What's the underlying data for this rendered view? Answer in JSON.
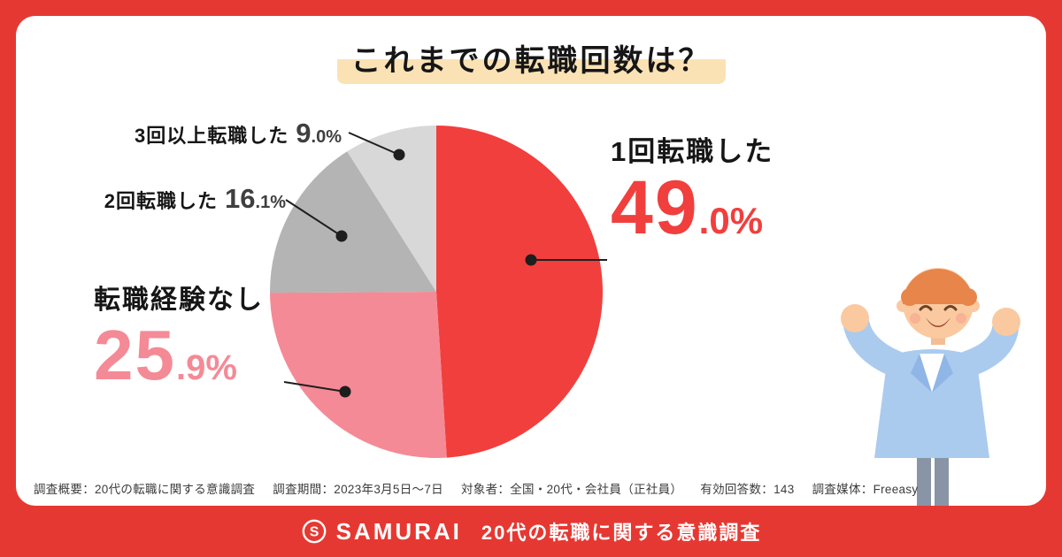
{
  "theme": {
    "bg_red": "#e63832",
    "card_white": "#ffffff",
    "title_highlight": "#fbe2b5",
    "accent_red": "#f13f3d",
    "accent_pink": "#f48a96",
    "gray": "#b4b4b4",
    "light_gray": "#d8d8d8"
  },
  "title": "これまでの転職回数は？",
  "chart_data": {
    "type": "pie",
    "title": "これまでの転職回数は？",
    "unit": "%",
    "start_angle": "top",
    "direction": "clockwise",
    "legend_position": "callout-labels",
    "slices": [
      {
        "label": "1回転職した",
        "value": 49.0,
        "display": "49.0%",
        "color": "#f13f3d"
      },
      {
        "label": "転職経験なし",
        "value": 25.9,
        "display": "25.9%",
        "color": "#f48a96"
      },
      {
        "label": "2回転職した",
        "value": 16.1,
        "display": "16.1%",
        "color": "#b4b4b4"
      },
      {
        "label": "3回以上転職した",
        "value": 9.0,
        "display": "9.0%",
        "color": "#d8d8d8"
      }
    ]
  },
  "callouts": {
    "once": {
      "label": "1回転職した",
      "value_main": "49",
      "value_sub": ".0%"
    },
    "none": {
      "label": "転職経験なし",
      "value_main": "25",
      "value_sub": ".9%"
    },
    "three_plus": {
      "label": "3回以上転職した",
      "value_main": "9",
      "value_sub": ".0%"
    },
    "twice": {
      "label": "2回転職した",
      "value_main": "16",
      "value_sub": ".1%"
    }
  },
  "survey_note": {
    "overview": "調査概要：20代の転職に関する意識調査",
    "period": "調査期間：2023年3月5日〜7日",
    "subjects": "対象者：全国・20代・会社員（正社員）",
    "responses": "有効回答数：143",
    "media": "調査媒体：Freeasy"
  },
  "footer_bar": {
    "brand": "SAMURAI",
    "caption": "20代の転職に関する意識調査"
  }
}
